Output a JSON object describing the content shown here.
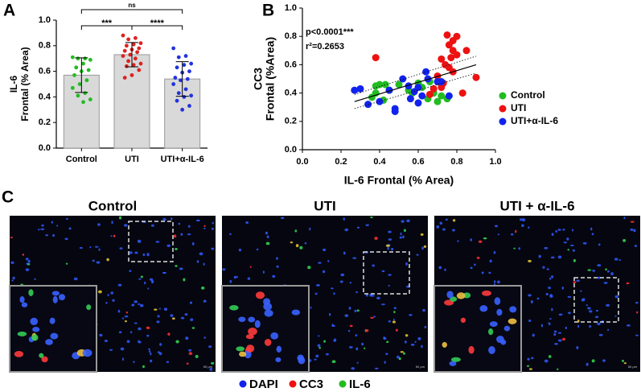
{
  "chart_data": [
    {
      "type": "bar",
      "label": "A",
      "ylabel": [
        "IL-6",
        "Frontal (% Area)"
      ],
      "categories": [
        "Control",
        "UTI",
        "UTI+α-IL-6"
      ],
      "values": [
        0.57,
        0.73,
        0.54
      ],
      "errors": [
        0.135,
        0.095,
        0.135
      ],
      "color": "#d9d9d9",
      "point_colors": [
        "#22bb22",
        "#dd2222",
        "#2233dd"
      ],
      "points": [
        [
          0.71,
          0.7,
          0.7,
          0.69,
          0.66,
          0.63,
          0.61,
          0.6,
          0.57,
          0.53,
          0.5,
          0.47,
          0.43,
          0.41,
          0.38,
          0.36
        ],
        [
          0.88,
          0.86,
          0.85,
          0.82,
          0.81,
          0.8,
          0.78,
          0.77,
          0.76,
          0.75,
          0.73,
          0.72,
          0.7,
          0.68,
          0.66,
          0.65,
          0.64,
          0.61,
          0.57,
          0.55
        ],
        [
          0.78,
          0.72,
          0.71,
          0.66,
          0.65,
          0.63,
          0.6,
          0.59,
          0.55,
          0.54,
          0.53,
          0.5,
          0.46,
          0.43,
          0.41,
          0.4,
          0.37,
          0.33,
          0.3
        ]
      ],
      "comparisons": [
        {
          "between": [
            0,
            2
          ],
          "label": "ns"
        },
        {
          "between": [
            0,
            1
          ],
          "label": "***"
        },
        {
          "between": [
            1,
            2
          ],
          "label": "****"
        }
      ],
      "ylim": [
        0,
        1
      ],
      "yticks": [
        {
          "value": 0,
          "label": "0.0"
        },
        0.2,
        0.4,
        0.6,
        0.8,
        {
          "value": 1,
          "label": "1.0"
        }
      ]
    },
    {
      "type": "scatter",
      "label": "B",
      "xlabel": "IL-6 Frontal (% Area)",
      "ylabel": [
        "CC3",
        "Frontal (%Area)"
      ],
      "stats": [
        "p<0.0001***",
        "r²=0.2653"
      ],
      "series": [
        {
          "name": "Control",
          "color": "#22bb22",
          "x": [
            0.4,
            0.43,
            0.38,
            0.45,
            0.42,
            0.38,
            0.5,
            0.55,
            0.57,
            0.62,
            0.65,
            0.68,
            0.7,
            0.72,
            0.6,
            0.75,
            0.66,
            0.36
          ],
          "y": [
            0.46,
            0.46,
            0.45,
            0.42,
            0.35,
            0.4,
            0.46,
            0.42,
            0.4,
            0.44,
            0.36,
            0.4,
            0.34,
            0.38,
            0.47,
            0.36,
            0.48,
            0.37
          ]
        },
        {
          "name": "UTI",
          "color": "#ee1111",
          "x": [
            0.75,
            0.8,
            0.78,
            0.85,
            0.76,
            0.78,
            0.8,
            0.77,
            0.72,
            0.74,
            0.76,
            0.78,
            0.9,
            0.7,
            0.83,
            0.72,
            0.68,
            0.73,
            0.66,
            0.38
          ],
          "y": [
            0.81,
            0.8,
            0.77,
            0.7,
            0.74,
            0.7,
            0.67,
            0.65,
            0.64,
            0.6,
            0.58,
            0.55,
            0.51,
            0.52,
            0.4,
            0.44,
            0.43,
            0.47,
            0.39,
            0.65
          ]
        },
        {
          "name": "UTI+α-IL-6",
          "color": "#1122ee",
          "x": [
            0.27,
            0.3,
            0.34,
            0.4,
            0.45,
            0.48,
            0.48,
            0.52,
            0.55,
            0.58,
            0.6,
            0.62,
            0.64,
            0.65,
            0.7,
            0.72,
            0.76,
            0.56,
            0.6
          ],
          "y": [
            0.42,
            0.43,
            0.32,
            0.34,
            0.42,
            0.29,
            0.27,
            0.5,
            0.45,
            0.41,
            0.44,
            0.38,
            0.55,
            0.5,
            0.48,
            0.48,
            0.38,
            0.36,
            0.33
          ]
        }
      ],
      "fit": {
        "x": [
          0.27,
          0.9
        ],
        "y": [
          0.34,
          0.6
        ],
        "lower": [
          0.29,
          0.54
        ],
        "upper": [
          0.39,
          0.66
        ]
      },
      "xlim": [
        0,
        1
      ],
      "xticks": [
        {
          "value": 0,
          "label": "0.0"
        },
        0.2,
        0.4,
        0.6,
        0.8,
        {
          "value": 1,
          "label": "1.0"
        }
      ],
      "ylim": [
        0,
        1
      ],
      "yticks": [
        {
          "value": 0,
          "label": "0.0"
        },
        0.2,
        0.4,
        0.6,
        0.8,
        {
          "value": 1,
          "label": "1.0"
        }
      ]
    }
  ],
  "panel_c": {
    "label": "C",
    "images": [
      {
        "title": "Control"
      },
      {
        "title": "UTI"
      },
      {
        "title": "UTI + α-IL-6"
      }
    ],
    "scale_bar": "50 μm",
    "legend": [
      {
        "name": "DAPI",
        "color": "#1122ee"
      },
      {
        "name": "CC3",
        "color": "#ee1111"
      },
      {
        "name": "IL-6",
        "color": "#22bb22"
      }
    ]
  }
}
